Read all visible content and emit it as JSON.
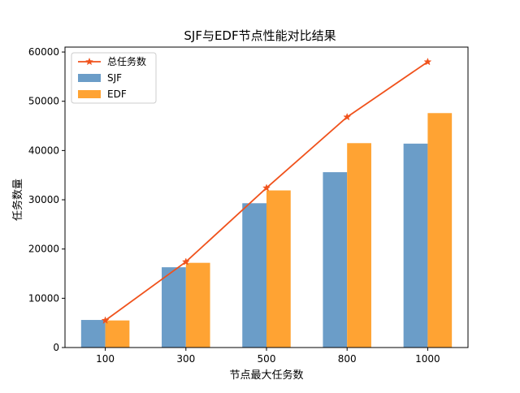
{
  "chart_data": {
    "type": "bar",
    "title": "SJF与EDF节点性能对比结果",
    "xlabel": "节点最大任务数",
    "ylabel": "任务数量",
    "categories": [
      "100",
      "300",
      "500",
      "800",
      "1000"
    ],
    "ylim": [
      0,
      61000
    ],
    "yticks": [
      0,
      10000,
      20000,
      30000,
      40000,
      50000,
      60000
    ],
    "grid": false,
    "legend_position": "top-left",
    "series": [
      {
        "name": "SJF",
        "type": "bar",
        "color": "#6b9dc8",
        "values": [
          5600,
          16300,
          29300,
          35600,
          41400
        ]
      },
      {
        "name": "EDF",
        "type": "bar",
        "color": "#ffa333",
        "values": [
          5500,
          17200,
          31900,
          41500,
          47600
        ]
      },
      {
        "name": "总任务数",
        "type": "line",
        "marker": "star",
        "color": "#f0521c",
        "values": [
          5500,
          17400,
          32400,
          46800,
          58000
        ]
      }
    ]
  }
}
